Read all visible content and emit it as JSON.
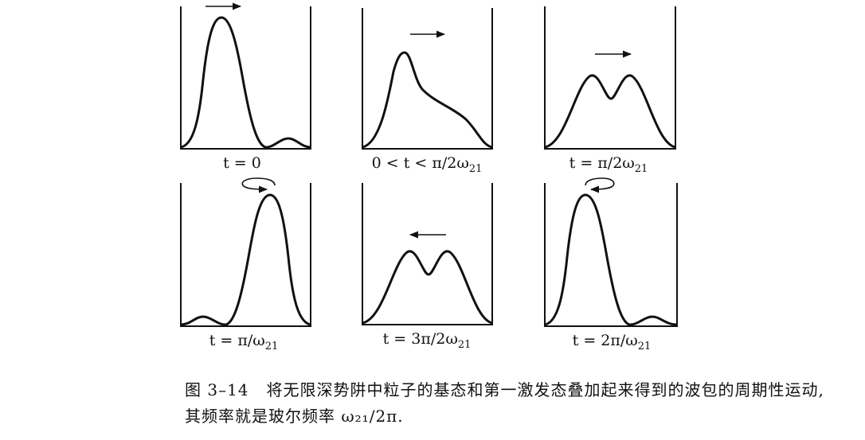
{
  "panels": [
    {
      "id": "p1",
      "label": [
        "t = 0"
      ],
      "arrow": "right"
    },
    {
      "id": "p2",
      "label": [
        "0 < t < π/2ω",
        "21"
      ],
      "arrow": "right"
    },
    {
      "id": "p3",
      "label": [
        "t = π/2ω",
        "21"
      ],
      "arrow": "right"
    },
    {
      "id": "p4",
      "label": [
        "t = π/ω",
        "21"
      ],
      "arrow": "reflect-right"
    },
    {
      "id": "p5",
      "label": [
        "t = 3π/2ω",
        "21"
      ],
      "arrow": "left"
    },
    {
      "id": "p6",
      "label": [
        "t = 2π/ω",
        "21"
      ],
      "arrow": "reflect-left"
    }
  ],
  "caption": {
    "figure_number": "图 3–14",
    "text": "将无限深势阱中粒子的基态和第一激发态叠加起来得到的波包的周期性运动, 其频率就是玻尔频率 ω₂₁/2π."
  }
}
